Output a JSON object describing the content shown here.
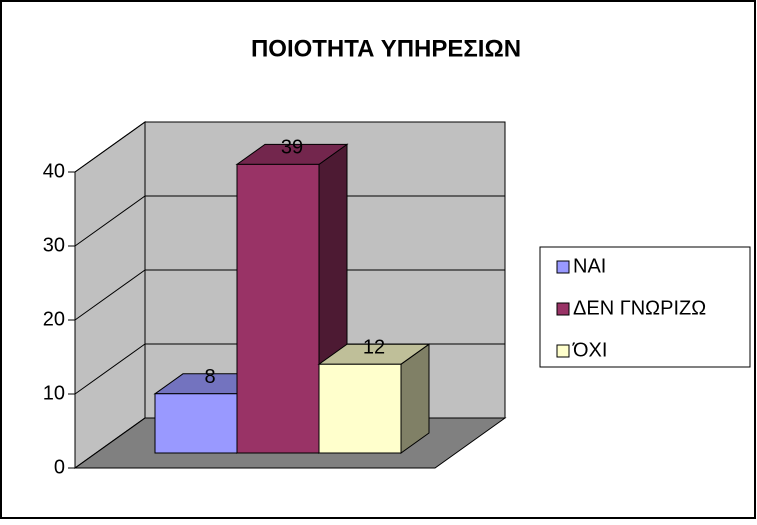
{
  "chart_data": {
    "type": "bar3d",
    "title": "ΠΟΙΟΤΗΤΑ ΥΠΗΡΕΣΙΩΝ",
    "categories": [
      null
    ],
    "series": [
      {
        "name": "NAI",
        "color": "#9999ff",
        "values": [
          8
        ]
      },
      {
        "name": "ΔΕΝ ΓΝΩΡΙΖΩ",
        "color": "#993366",
        "values": [
          39
        ]
      },
      {
        "name": "ΌΧΙ",
        "color": "#ffffcc",
        "values": [
          12
        ]
      }
    ],
    "ylim": [
      0,
      40
    ],
    "yticks": [
      0,
      10,
      20,
      30,
      40
    ],
    "grid": true,
    "legend": "right"
  }
}
